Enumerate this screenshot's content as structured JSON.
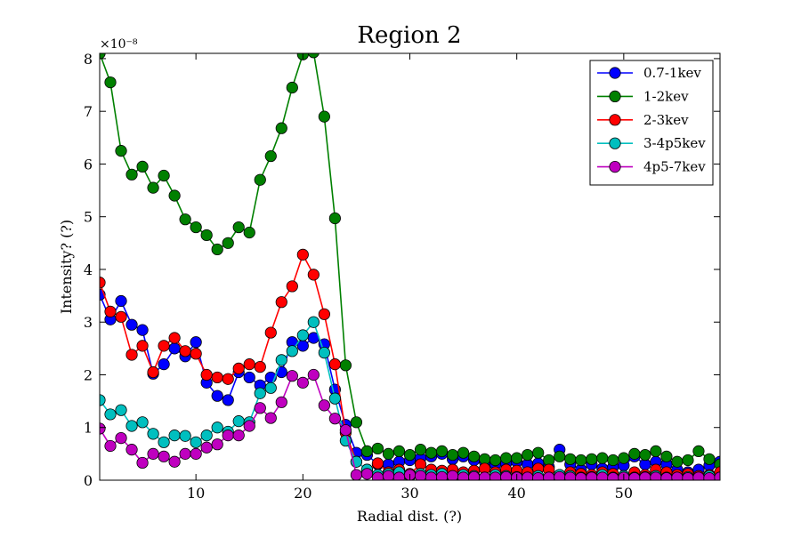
{
  "chart_data": {
    "type": "line",
    "title": "Region 2",
    "xlabel": "Radial dist. (?)",
    "ylabel": "Intensity? (?)",
    "y_scale_label": "×10⁻⁸",
    "xlim": [
      1,
      59
    ],
    "ylim": [
      0,
      8.1
    ],
    "xticks": [
      "10",
      "20",
      "30",
      "40",
      "50"
    ],
    "yticks": [
      "0",
      "1",
      "2",
      "3",
      "4",
      "5",
      "6",
      "7",
      "8"
    ],
    "legend_position": "top-right",
    "grid": false,
    "x": [
      1,
      2,
      3,
      4,
      5,
      6,
      7,
      8,
      9,
      10,
      11,
      12,
      13,
      14,
      15,
      16,
      17,
      18,
      19,
      20,
      21,
      22,
      23,
      24,
      25,
      26,
      27,
      28,
      29,
      30,
      31,
      32,
      33,
      34,
      35,
      36,
      37,
      38,
      39,
      40,
      41,
      42,
      43,
      44,
      45,
      46,
      47,
      48,
      49,
      50,
      51,
      52,
      53,
      54,
      55,
      56,
      57,
      58,
      59
    ],
    "series": [
      {
        "name": "0.7-1kev",
        "color": "#0000ff",
        "values": [
          3.52,
          3.05,
          3.4,
          2.95,
          2.85,
          2.02,
          2.2,
          2.5,
          2.35,
          2.62,
          1.85,
          1.6,
          1.52,
          2.05,
          1.95,
          1.8,
          1.95,
          2.05,
          2.62,
          2.55,
          2.7,
          2.58,
          1.72,
          1.05,
          0.52,
          0.48,
          0.3,
          0.3,
          0.35,
          0.38,
          0.42,
          0.45,
          0.5,
          0.4,
          0.45,
          0.38,
          0.35,
          0.3,
          0.32,
          0.35,
          0.3,
          0.32,
          0.25,
          0.58,
          0.3,
          0.2,
          0.3,
          0.22,
          0.25,
          0.28,
          0.45,
          0.3,
          0.35,
          0.3,
          0.2,
          0.15,
          0.2,
          0.28,
          0.35
        ]
      },
      {
        "name": "1-2kev",
        "color": "#008000",
        "values": [
          8.1,
          7.55,
          6.25,
          5.8,
          5.95,
          5.55,
          5.78,
          5.4,
          4.95,
          4.8,
          4.65,
          4.38,
          4.5,
          4.8,
          4.7,
          5.7,
          6.15,
          6.68,
          7.45,
          8.08,
          8.12,
          6.9,
          4.97,
          2.18,
          1.1,
          0.55,
          0.6,
          0.5,
          0.55,
          0.48,
          0.58,
          0.52,
          0.55,
          0.48,
          0.52,
          0.45,
          0.4,
          0.38,
          0.42,
          0.42,
          0.48,
          0.52,
          0.38,
          0.45,
          0.4,
          0.38,
          0.4,
          0.42,
          0.38,
          0.42,
          0.5,
          0.48,
          0.55,
          0.45,
          0.35,
          0.38,
          0.55,
          0.4,
          0.3
        ]
      },
      {
        "name": "2-3kev",
        "color": "#ff0000",
        "values": [
          3.75,
          3.2,
          3.1,
          2.38,
          2.55,
          2.05,
          2.55,
          2.7,
          2.45,
          2.4,
          2.0,
          1.95,
          1.92,
          2.12,
          2.2,
          2.15,
          2.8,
          3.38,
          3.68,
          4.28,
          3.9,
          3.15,
          2.2,
          0.9,
          0.35,
          0.2,
          0.32,
          0.15,
          0.2,
          0.12,
          0.3,
          0.2,
          0.18,
          0.2,
          0.15,
          0.18,
          0.22,
          0.15,
          0.2,
          0.18,
          0.15,
          0.22,
          0.2,
          0.1,
          0.15,
          0.12,
          0.1,
          0.15,
          0.12,
          0.08,
          0.15,
          0.1,
          0.2,
          0.15,
          0.1,
          0.12,
          0.08,
          0.1,
          0.15
        ]
      },
      {
        "name": "3-4p5kev",
        "color": "#00bfbf",
        "values": [
          1.52,
          1.25,
          1.33,
          1.03,
          1.1,
          0.88,
          0.72,
          0.85,
          0.84,
          0.72,
          0.85,
          1.0,
          0.92,
          1.12,
          1.1,
          1.65,
          1.75,
          2.28,
          2.45,
          2.75,
          3.0,
          2.42,
          1.55,
          0.75,
          0.35,
          0.2,
          0.1,
          0.12,
          0.15,
          0.08,
          0.12,
          0.1,
          0.12,
          0.05,
          0.1,
          0.08,
          0.05,
          0.1,
          0.08,
          0.06,
          0.05,
          0.08,
          0.05,
          0.1,
          0.08,
          0.05,
          0.06,
          0.1,
          0.05,
          0.08,
          0.05,
          0.06,
          0.08,
          0.05,
          0.05,
          0.06,
          0.05,
          0.08,
          0.05
        ]
      },
      {
        "name": "4p5-7kev",
        "color": "#bf00bf",
        "values": [
          0.98,
          0.65,
          0.8,
          0.58,
          0.33,
          0.5,
          0.45,
          0.35,
          0.5,
          0.5,
          0.62,
          0.68,
          0.85,
          0.85,
          1.03,
          1.37,
          1.18,
          1.48,
          1.98,
          1.85,
          2.0,
          1.42,
          1.17,
          0.95,
          0.1,
          0.12,
          0.05,
          0.08,
          0.05,
          0.1,
          0.08,
          0.05,
          0.06,
          0.08,
          0.05,
          0.06,
          0.05,
          0.05,
          0.06,
          0.05,
          0.05,
          0.04,
          0.05,
          0.06,
          0.05,
          0.04,
          0.05,
          0.05,
          0.04,
          0.05,
          0.04,
          0.05,
          0.05,
          0.04,
          0.05,
          0.04,
          0.05,
          0.04,
          0.05
        ]
      }
    ]
  }
}
